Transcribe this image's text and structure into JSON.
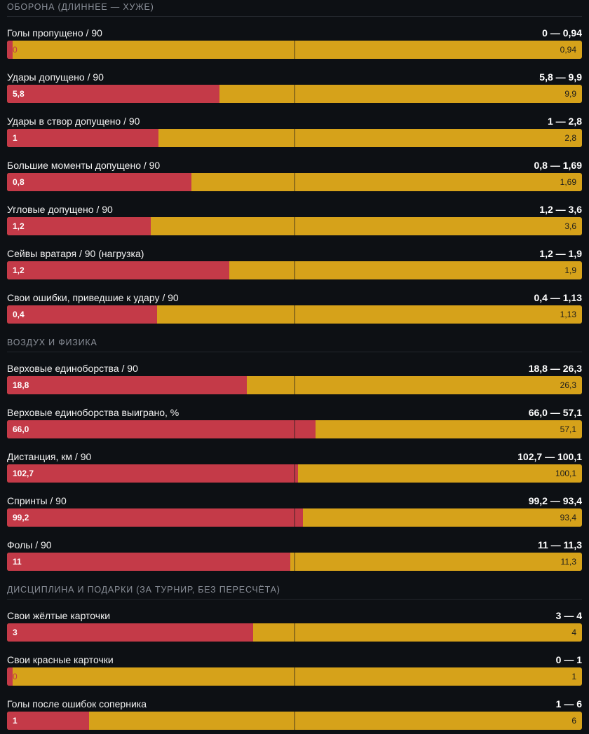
{
  "colors": {
    "left": "#c43a48",
    "right": "#d6a21a",
    "background": "#0d1014"
  },
  "chart_data": {
    "type": "bar",
    "orientation": "horizontal-stacked-comparison",
    "sections": [
      {
        "title": "ОБОРОНА (ДЛИННЕЕ — ХУЖЕ)",
        "rows": [
          {
            "label": "Голы пропущено / 90",
            "summary": "0 — 0,94",
            "left": 0,
            "right": 0.94,
            "left_text": "0",
            "right_text": "0,94"
          },
          {
            "label": "Удары допущено / 90",
            "summary": "5,8 — 9,9",
            "left": 5.8,
            "right": 9.9,
            "left_text": "5,8",
            "right_text": "9,9"
          },
          {
            "label": "Удары в створ допущено / 90",
            "summary": "1 — 2,8",
            "left": 1,
            "right": 2.8,
            "left_text": "1",
            "right_text": "2,8"
          },
          {
            "label": "Большие моменты допущено / 90",
            "summary": "0,8 — 1,69",
            "left": 0.8,
            "right": 1.69,
            "left_text": "0,8",
            "right_text": "1,69"
          },
          {
            "label": "Угловые допущено / 90",
            "summary": "1,2 — 3,6",
            "left": 1.2,
            "right": 3.6,
            "left_text": "1,2",
            "right_text": "3,6"
          },
          {
            "label": "Сейвы вратаря / 90 (нагрузка)",
            "summary": "1,2 — 1,9",
            "left": 1.2,
            "right": 1.9,
            "left_text": "1,2",
            "right_text": "1,9"
          },
          {
            "label": "Свои ошибки, приведшие к удару / 90",
            "summary": "0,4 — 1,13",
            "left": 0.4,
            "right": 1.13,
            "left_text": "0,4",
            "right_text": "1,13"
          }
        ]
      },
      {
        "title": "ВОЗДУХ И ФИЗИКА",
        "rows": [
          {
            "label": "Верховые единоборства / 90",
            "summary": "18,8 — 26,3",
            "left": 18.8,
            "right": 26.3,
            "left_text": "18,8",
            "right_text": "26,3"
          },
          {
            "label": "Верховые единоборства выиграно, %",
            "summary": "66,0 — 57,1",
            "left": 66.0,
            "right": 57.1,
            "left_text": "66,0",
            "right_text": "57,1"
          },
          {
            "label": "Дистанция, км / 90",
            "summary": "102,7 — 100,1",
            "left": 102.7,
            "right": 100.1,
            "left_text": "102,7",
            "right_text": "100,1"
          },
          {
            "label": "Спринты / 90",
            "summary": "99,2 — 93,4",
            "left": 99.2,
            "right": 93.4,
            "left_text": "99,2",
            "right_text": "93,4"
          },
          {
            "label": "Фолы / 90",
            "summary": "11 — 11,3",
            "left": 11,
            "right": 11.3,
            "left_text": "11",
            "right_text": "11,3"
          }
        ]
      },
      {
        "title": "ДИСЦИПЛИНА И ПОДАРКИ (ЗА ТУРНИР, БЕЗ ПЕРЕСЧЁТА)",
        "rows": [
          {
            "label": "Свои жёлтые карточки",
            "summary": "3 — 4",
            "left": 3,
            "right": 4,
            "left_text": "3",
            "right_text": "4"
          },
          {
            "label": "Свои красные карточки",
            "summary": "0 — 1",
            "left": 0,
            "right": 1,
            "left_text": "0",
            "right_text": "1"
          },
          {
            "label": "Голы после ошибок соперника",
            "summary": "1 — 6",
            "left": 1,
            "right": 6,
            "left_text": "1",
            "right_text": "6"
          }
        ]
      }
    ]
  }
}
